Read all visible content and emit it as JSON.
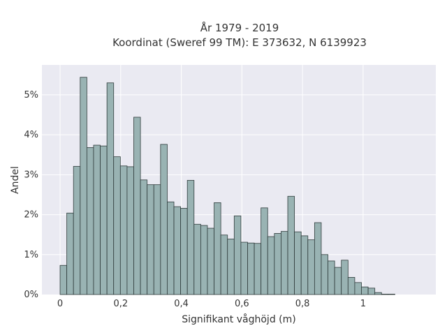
{
  "chart_data": {
    "type": "bar",
    "title": "År 1979 - 2019",
    "subtitle": "Koordinat (Sweref 99 TM): E 373632, N 6139923",
    "xlabel": "Signifikant våghöjd (m)",
    "ylabel": "Andel",
    "xlim": [
      -0.06,
      1.24
    ],
    "ylim": [
      0,
      5.75
    ],
    "x_ticks": [
      {
        "value": 0,
        "label": "0"
      },
      {
        "value": 0.2,
        "label": "0,2"
      },
      {
        "value": 0.4,
        "label": "0,4"
      },
      {
        "value": 0.6,
        "label": "0,6"
      },
      {
        "value": 0.8,
        "label": "0,8"
      },
      {
        "value": 1.0,
        "label": "1"
      }
    ],
    "y_ticks": [
      {
        "value": 0,
        "label": "0%"
      },
      {
        "value": 1,
        "label": "1%"
      },
      {
        "value": 2,
        "label": "2%"
      },
      {
        "value": 3,
        "label": "3%"
      },
      {
        "value": 4,
        "label": "4%"
      },
      {
        "value": 5,
        "label": "5%"
      }
    ],
    "bin_start": 0,
    "bin_width": 0.0221,
    "values": [
      0.73,
      2.04,
      3.21,
      5.44,
      3.68,
      3.74,
      3.72,
      5.3,
      3.45,
      3.22,
      3.2,
      4.44,
      2.87,
      2.75,
      2.75,
      3.76,
      2.32,
      2.2,
      2.16,
      2.86,
      1.76,
      1.73,
      1.66,
      2.3,
      1.49,
      1.39,
      1.97,
      1.31,
      1.29,
      1.28,
      2.17,
      1.45,
      1.53,
      1.58,
      2.46,
      1.57,
      1.47,
      1.37,
      1.8,
      1.0,
      0.84,
      0.68,
      0.86,
      0.43,
      0.3,
      0.19,
      0.16,
      0.05,
      0.01,
      0.01
    ],
    "bar_color": "#99b3b3",
    "background_color": "#eaeaf2",
    "grid": true
  }
}
